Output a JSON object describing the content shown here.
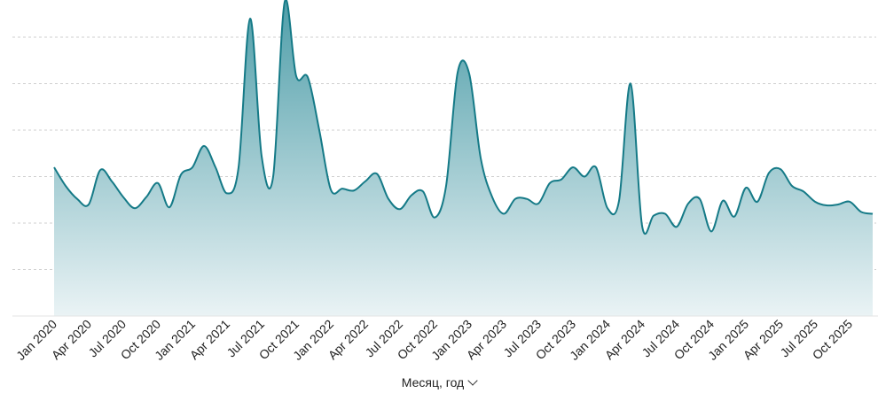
{
  "colors": {
    "line": "#157a87",
    "fill_top": "#4f9ea9",
    "fill_bottom": "#eaf3f5",
    "grid": "#cfcfcf"
  },
  "chart_data": {
    "type": "area",
    "xlabel": "Месяц, год",
    "xlabel_icon": "chevron-down-icon",
    "tick_labels": [
      "Jan 2020",
      "Apr 2020",
      "Jul 2020",
      "Oct 2020",
      "Jan 2021",
      "Apr 2021",
      "Jul 2021",
      "Oct 2021",
      "Jan 2022",
      "Apr 2022",
      "Jul 2022",
      "Oct 2022",
      "Jan 2023",
      "Apr 2023",
      "Jul 2023",
      "Oct 2023",
      "Jan 2024",
      "Apr 2024",
      "Jul 2024",
      "Oct 2024",
      "Jan 2025",
      "Apr 2025",
      "Jul 2025",
      "Oct 2025"
    ],
    "ylim": [
      0,
      340
    ],
    "grid": true,
    "y_gridlines": [
      50,
      100,
      150,
      200,
      250,
      300
    ],
    "x": [
      "2020-01",
      "2020-02",
      "2020-03",
      "2020-04",
      "2020-05",
      "2020-06",
      "2020-07",
      "2020-08",
      "2020-09",
      "2020-10",
      "2020-11",
      "2020-12",
      "2021-01",
      "2021-02",
      "2021-03",
      "2021-04",
      "2021-05",
      "2021-06",
      "2021-07",
      "2021-08",
      "2021-09",
      "2021-10",
      "2021-11",
      "2021-12",
      "2022-01",
      "2022-02",
      "2022-03",
      "2022-04",
      "2022-05",
      "2022-06",
      "2022-07",
      "2022-08",
      "2022-09",
      "2022-10",
      "2022-11",
      "2022-12",
      "2023-01",
      "2023-02",
      "2023-03",
      "2023-04",
      "2023-05",
      "2023-06",
      "2023-07",
      "2023-08",
      "2023-09",
      "2023-10",
      "2023-11",
      "2023-12",
      "2024-01",
      "2024-02",
      "2024-03",
      "2024-04",
      "2024-05",
      "2024-06",
      "2024-07",
      "2024-08",
      "2024-09",
      "2024-10",
      "2024-11",
      "2024-12",
      "2025-01",
      "2025-02",
      "2025-03",
      "2025-04",
      "2025-05",
      "2025-06",
      "2025-07",
      "2025-08",
      "2025-09",
      "2025-10",
      "2025-11",
      "2025-12"
    ],
    "values": [
      160,
      140,
      126,
      120,
      157,
      145,
      128,
      116,
      128,
      143,
      117,
      152,
      160,
      183,
      160,
      132,
      160,
      320,
      172,
      150,
      338,
      258,
      257,
      200,
      136,
      137,
      135,
      145,
      153,
      126,
      115,
      130,
      134,
      106,
      140,
      262,
      261,
      170,
      128,
      110,
      126,
      126,
      121,
      143,
      147,
      160,
      150,
      160,
      116,
      124,
      250,
      97,
      108,
      110,
      96,
      121,
      126,
      91,
      124,
      107,
      138,
      123,
      154,
      158,
      140,
      134,
      123,
      119,
      120,
      123,
      112,
      110
    ]
  }
}
